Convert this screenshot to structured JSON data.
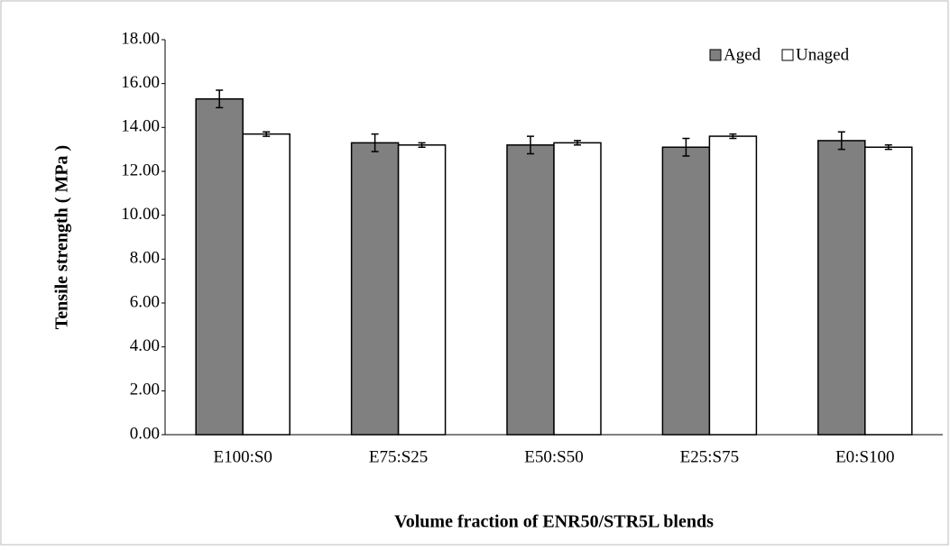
{
  "chart_data": {
    "type": "bar",
    "x_label": "Volume fraction of  ENR50/STR5L blends",
    "y_label": "Tensile strength ( MPa  )",
    "categories": [
      "E100:S0",
      "E75:S25",
      "E50:S50",
      "E25:S75",
      "E0:S100"
    ],
    "series": [
      {
        "name": "Aged",
        "color": "#808080",
        "values": [
          15.3,
          13.3,
          13.2,
          13.1,
          13.4
        ],
        "errors": [
          0.4,
          0.4,
          0.4,
          0.4,
          0.4
        ]
      },
      {
        "name": "Unaged",
        "color": "#ffffff",
        "values": [
          13.7,
          13.2,
          13.3,
          13.6,
          13.1
        ],
        "errors": [
          0.1,
          0.1,
          0.1,
          0.1,
          0.1
        ]
      }
    ],
    "ylim": [
      0,
      18
    ],
    "yticks": [
      {
        "value": 0,
        "label": "0.00"
      },
      {
        "value": 2,
        "label": "2.00"
      },
      {
        "value": 4,
        "label": "4.00"
      },
      {
        "value": 6,
        "label": "6.00"
      },
      {
        "value": 8,
        "label": "8.00"
      },
      {
        "value": 10,
        "label": "10.00"
      },
      {
        "value": 12,
        "label": "12.00"
      },
      {
        "value": 14,
        "label": "14.00"
      },
      {
        "value": 16,
        "label": "16.00"
      },
      {
        "value": 18,
        "label": "18.00"
      }
    ],
    "legend": "top-right"
  }
}
